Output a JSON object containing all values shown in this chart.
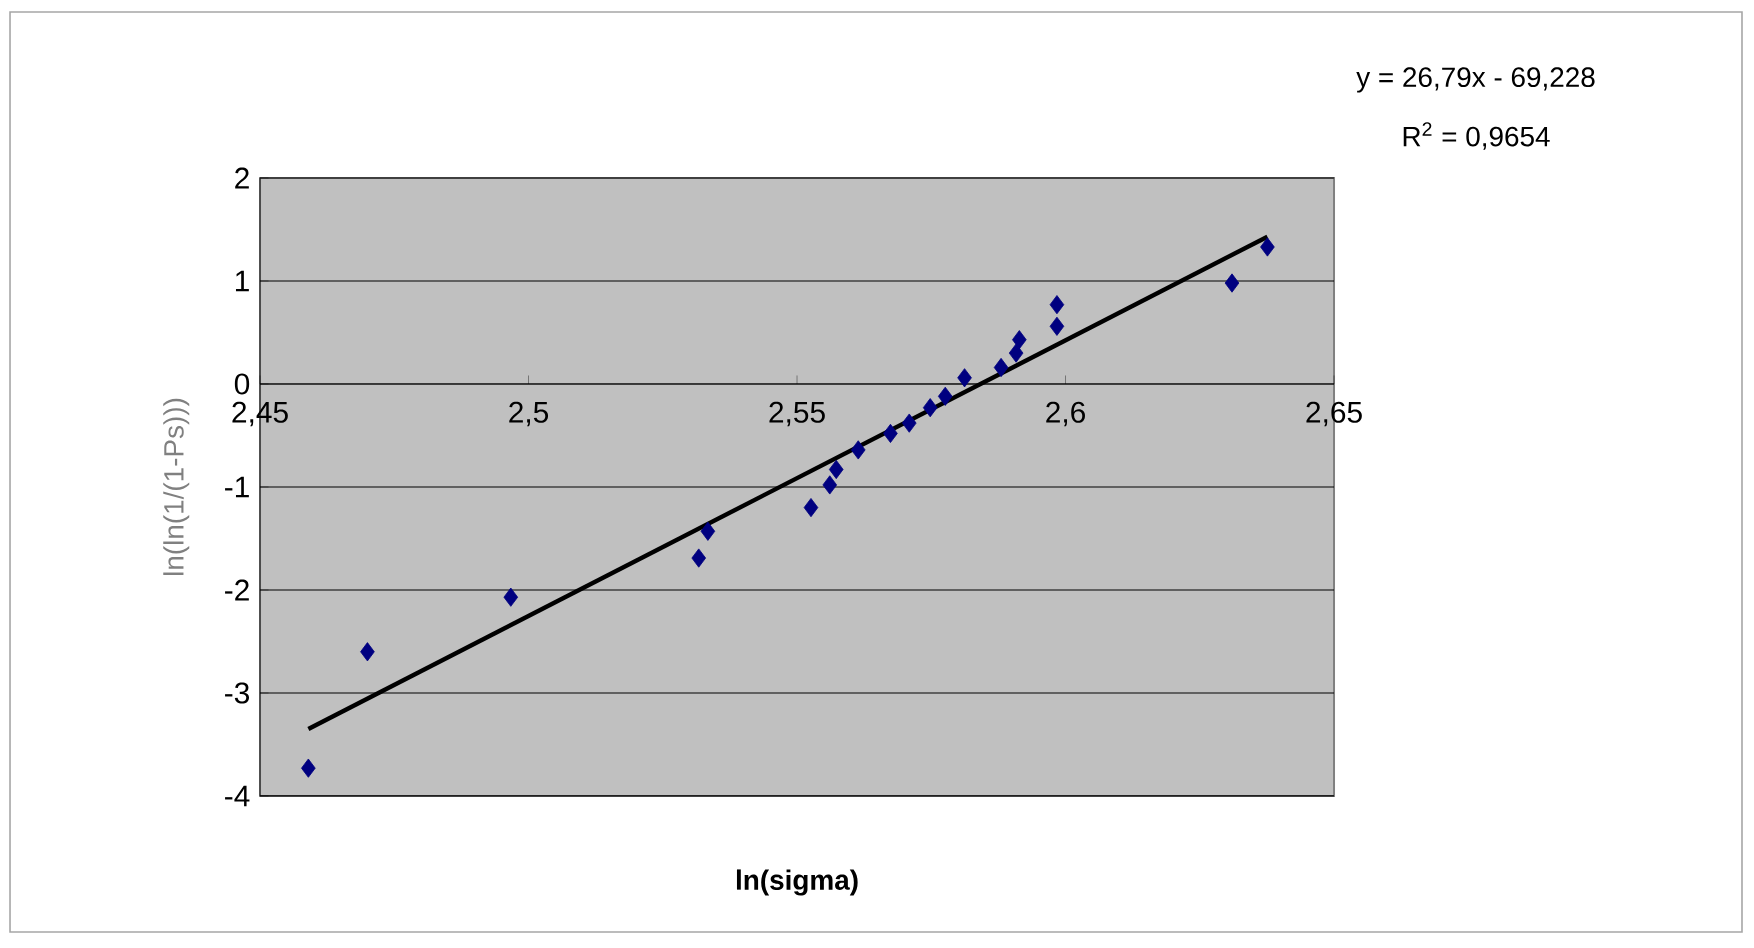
{
  "chart_data": {
    "type": "scatter",
    "xlabel": "ln(sigma)",
    "ylabel": "ln(ln(1/(1-Ps)))",
    "annotations": [
      "y = 26,79x - 69,228",
      "R$^{2}$ = 0,9654"
    ],
    "xlim": [
      2.45,
      2.65
    ],
    "ylim": [
      -4,
      2
    ],
    "xticks": [
      {
        "value": 2.45,
        "label": "2,45"
      },
      {
        "value": 2.5,
        "label": "2,5"
      },
      {
        "value": 2.55,
        "label": "2,55"
      },
      {
        "value": 2.6,
        "label": "2,6"
      },
      {
        "value": 2.65,
        "label": "2,65"
      }
    ],
    "yticks": [
      -4,
      -3,
      -2,
      -1,
      0,
      1,
      2
    ],
    "grid": "y",
    "series": [
      {
        "color": "#000080",
        "marker": "diamond",
        "x": [
          2.459,
          2.47,
          2.4967,
          2.5317,
          2.5334,
          2.5526,
          2.5561,
          2.5573,
          2.5614,
          2.5674,
          2.5709,
          2.5748,
          2.5776,
          2.5812,
          2.588,
          2.5908,
          2.5914,
          2.5984,
          2.5984,
          2.631,
          2.6376
        ],
        "values": [
          -3.73,
          -2.6,
          -2.07,
          -1.69,
          -1.43,
          -1.2,
          -0.98,
          -0.83,
          -0.64,
          -0.48,
          -0.38,
          -0.23,
          -0.12,
          0.06,
          0.16,
          0.3,
          0.43,
          0.56,
          0.77,
          0.98,
          1.33
        ]
      },
      {
        "type": "line",
        "color": "#000000",
        "marker": "none",
        "x": [
          2.459,
          2.6376
        ],
        "values": [
          -3.35,
          1.43
        ]
      }
    ]
  }
}
